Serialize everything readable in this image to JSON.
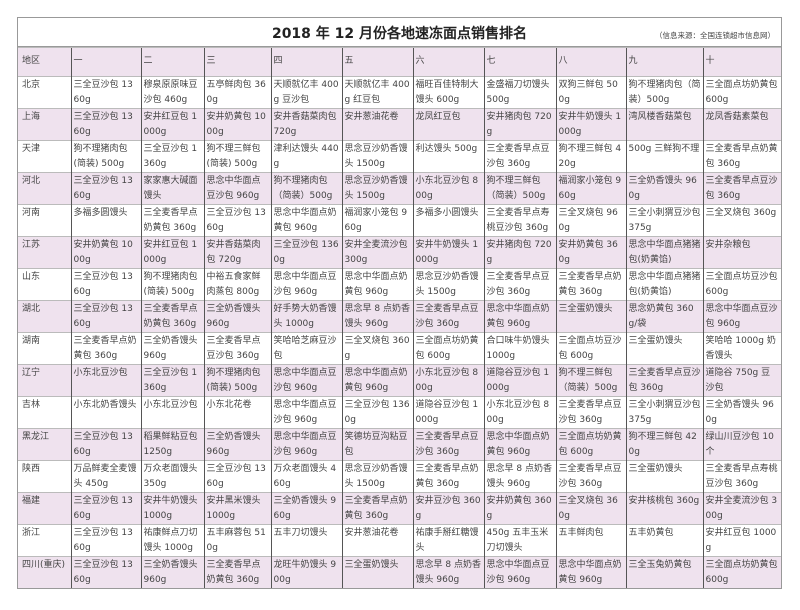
{
  "title": "2018 年 12 月份各地速冻面点销售排名",
  "source": "（信息来源：全国连锁超市信息网）",
  "columns": [
    "地区",
    "一",
    "二",
    "三",
    "四",
    "五",
    "六",
    "七",
    "八",
    "九",
    "十"
  ],
  "rows": [
    [
      "北京",
      "三全豆沙包 1360g",
      "穆泉原原味豆沙包 460g",
      "五亭鲜肉包 360g",
      "天顺就亿丰 400g 豆沙包",
      "天顺就亿丰 400g 红豆包",
      "福旺百佳特制大馒头 600g",
      "金盛福刀切馒头 500g",
      "双狗三鲜包 500g",
      "狗不理猪肉包（简装）500g",
      "三全面点坊奶黄包 600g"
    ],
    [
      "上海",
      "三全豆沙包 1360g",
      "安井红豆包 1000g",
      "安井奶黄包 1000g",
      "安井香菇菜肉包 720g",
      "安井葱油花卷",
      "龙凤红豆包",
      "安井猪肉包 720g",
      "安井牛奶馒头 1000g",
      "湾风楼香菇菜包",
      "龙凤香菇素菜包"
    ],
    [
      "天津",
      "狗不理猪肉包(简装) 500g",
      "三全豆沙包 1360g",
      "狗不理三鲜包(简装) 500g",
      "津利达馒头 440g",
      "思念豆沙奶香馒头 1500g",
      "利达馒头 500g",
      "三全麦香早点豆沙包 360g",
      "狗不理三鲜包 420g",
      "500g 三鲜狗不理",
      "三全麦香早点奶黄包 360g"
    ],
    [
      "河北",
      "三全豆沙包 1360g",
      "家家惠大碱面馒头",
      "思念中华面点豆沙包 960g",
      "狗不理猪肉包（简装）500g",
      "思念豆沙奶香馒头 1500g",
      "小东北豆沙包 800g",
      "狗不理三鲜包（简装）500g",
      "福润家小笼包 960g",
      "三全奶香馒头 960g",
      "三全麦香早点豆沙包 360g"
    ],
    [
      "河南",
      "多福多圆馒头",
      "三全麦香早点奶黄包 360g",
      "三全豆沙包 1360g",
      "思念中华面点奶黄包 960g",
      "福润家小笼包 960g",
      "多福多小圆馒头",
      "三全麦香早点寿桃豆沙包 360g",
      "三全叉烧包 960g",
      "三全小刺猬豆沙包 375g",
      "三全叉烧包 360g"
    ],
    [
      "江苏",
      "安井奶黄包 1000g",
      "安井红豆包 1000g",
      "安井香菇菜肉包 720g",
      "三全豆沙包 1360g",
      "安井全麦流沙包 300g",
      "安井牛奶馒头 1000g",
      "安井猪肉包 720g",
      "安井奶黄包 360g",
      "思念中华面点猪猪包(奶黄馅)",
      "安井杂粮包"
    ],
    [
      "山东",
      "三全豆沙包 1360g",
      "狗不理猪肉包(简装) 500g",
      "中裕五食家鲜肉蒸包 800g",
      "思念中华面点豆沙包 960g",
      "思念中华面点奶黄包 960g",
      "思念豆沙奶香馒头 1500g",
      "三全麦香早点豆沙包 360g",
      "三全麦香早点奶黄包 360g",
      "思念中华面点猪猪包(奶黄馅)",
      "三全面点坊豆沙包 600g"
    ],
    [
      "湖北",
      "三全豆沙包 1360g",
      "三全麦香早点奶黄包 360g",
      "三全奶香馒头 960g",
      "好手势大奶香馒头 1000g",
      "思念早 8 点奶香馒头 960g",
      "三全麦香早点豆沙包 360g",
      "思念中华面点奶黄包 960g",
      "三全蛋奶馒头",
      "思念奶黄包 360g/袋",
      "思念中华面点豆沙包 960g"
    ],
    [
      "湖南",
      "三全麦香早点奶黄包 360g",
      "三全奶香馒头 960g",
      "三全麦香早点豆沙包 360g",
      "笑哈哈芝麻豆沙包",
      "三全叉烧包 360g",
      "三全面点坊奶黄包 600g",
      "合口味牛奶馒头 1000g",
      "三全面点坊豆沙包 600g",
      "三全蛋奶馒头",
      "笑哈哈 1000g 奶香馒头"
    ],
    [
      "辽宁",
      "小东北豆沙包",
      "三全豆沙包 1360g",
      "狗不理猪肉包(简装) 500g",
      "思念中华面点豆沙包 960g",
      "思念中华面点奶黄包 960g",
      "小东北豆沙包 800g",
      "道隐谷豆沙包 1000g",
      "狗不理三鲜包（简装）500g",
      "三全麦香早点豆沙包 360g",
      "道隐谷 750g 豆沙包"
    ],
    [
      "吉林",
      "小东北奶香馒头",
      "小东北豆沙包",
      "小东北花卷",
      "思念中华面点豆沙包 960g",
      "三全豆沙包 1360g",
      "道隐谷豆沙包 1000g",
      "小东北豆沙包 800g",
      "三全麦香早点豆沙包 360g",
      "三全小刺猬豆沙包 375g",
      "三全奶香馒头 960g"
    ],
    [
      "黑龙江",
      "三全豆沙包 1360g",
      "稻果鲜粘豆包 1250g",
      "三全奶香馒头 960g",
      "思念中华面点豆沙包 960g",
      "笑德坊豆沟粘豆包",
      "三全麦香早点豆沙包 360g",
      "思念中华面点奶黄包 960g",
      "三全面点坊奶黄包 600g",
      "狗不理三鲜包 420g",
      "绿山川豆沙包 10 个"
    ],
    [
      "陕西",
      "万品鲜麦全麦馒头 450g",
      "万众老面馒头 350g",
      "三全豆沙包 1360g",
      "万众老面馒头 460g",
      "思念豆沙奶香馒头 1500g",
      "三全麦香早点奶黄包 360g",
      "思念早 8 点奶香馒头 960g",
      "三全麦香早点豆沙包 360g",
      "三全蛋奶馒头",
      "三全麦香早点寿桃豆沙包 360g"
    ],
    [
      "福建",
      "三全豆沙包 1360g",
      "安井牛奶馒头 1000g",
      "安井黑米馒头 1000g",
      "三全奶香馒头 960g",
      "三全麦香早点奶黄包 360g",
      "安井豆沙包 360g",
      "安井奶黄包 360g",
      "三全叉烧包 360g",
      "安井核桃包 360g",
      "安井全麦流沙包 300g"
    ],
    [
      "浙江",
      "三全豆沙包 1360g",
      "祐康鲜点刀切馒头 1000g",
      "五丰麻蓉包 510g",
      "五丰刀切馒头",
      "安井葱油花卷",
      "祐康手掰红糖馒头",
      "450g 五丰玉米刀切馒头",
      "五丰鲜肉包",
      "五丰奶黄包",
      "安井红豆包 1000g"
    ],
    [
      "四川(重庆)",
      "三全豆沙包 1360g",
      "三全奶香馒头 960g",
      "三全麦香早点奶黄包 360g",
      "龙旺牛奶馒头 900g",
      "三全蛋奶馒头",
      "思念早 8 点奶香馒头 960g",
      "思念中华面点豆沙包 960g",
      "思念中华面点奶黄包 960g",
      "三全玉兔奶黄包",
      "三全面点坊奶黄包 600g"
    ]
  ],
  "colors": {
    "row_highlight": "#efe2ee",
    "border": "#555555"
  }
}
